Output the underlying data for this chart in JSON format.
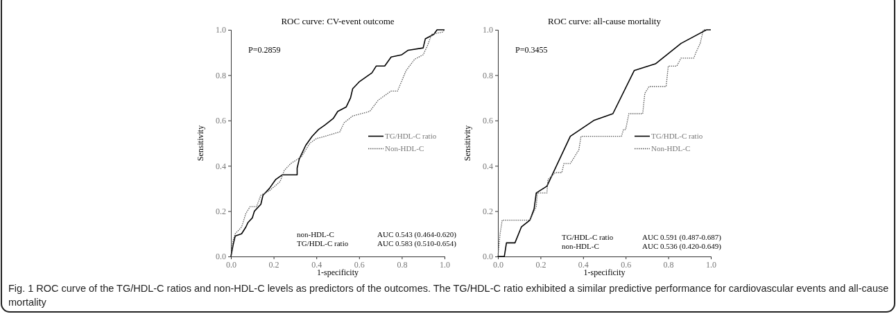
{
  "chart_data": [
    {
      "type": "line",
      "title": "ROC curve: CV-event outcome",
      "xlabel": "1-specificity",
      "ylabel": "Sensitivity",
      "xlim": [
        0,
        1
      ],
      "ylim": [
        0,
        1
      ],
      "xticks": [
        {
          "value": 0,
          "label": "0.0"
        },
        {
          "value": 0.2,
          "label": "0.2"
        },
        {
          "value": 0.4,
          "label": "0.4"
        },
        {
          "value": 0.6,
          "label": "0.6"
        },
        {
          "value": 0.8,
          "label": "0.8"
        },
        {
          "value": 1,
          "label": "1.0"
        }
      ],
      "yticks": [
        {
          "value": 0,
          "label": "0.0"
        },
        {
          "value": 0.2,
          "label": "0.2"
        },
        {
          "value": 0.4,
          "label": "0.4"
        },
        {
          "value": 0.6,
          "label": "0.6"
        },
        {
          "value": 0.8,
          "label": "0.8"
        },
        {
          "value": 1,
          "label": "1.0"
        }
      ],
      "legend": "right",
      "series": [
        {
          "name": "TG/HDL-C ratio",
          "color": "#000000",
          "line_style": "solid",
          "x": [
            0,
            0.01,
            0.02,
            0.05,
            0.07,
            0.08,
            0.1,
            0.11,
            0.14,
            0.15,
            0.18,
            0.21,
            0.24,
            0.31,
            0.31,
            0.32,
            0.35,
            0.38,
            0.41,
            0.44,
            0.48,
            0.5,
            0.54,
            0.56,
            0.57,
            0.6,
            0.63,
            0.66,
            0.68,
            0.72,
            0.75,
            0.8,
            0.83,
            0.9,
            0.91,
            0.95,
            0.965,
            1
          ],
          "values": [
            0,
            0.05,
            0.09,
            0.1,
            0.13,
            0.15,
            0.17,
            0.2,
            0.23,
            0.27,
            0.3,
            0.34,
            0.36,
            0.36,
            0.39,
            0.43,
            0.49,
            0.53,
            0.56,
            0.58,
            0.61,
            0.64,
            0.66,
            0.7,
            0.74,
            0.77,
            0.79,
            0.81,
            0.84,
            0.84,
            0.88,
            0.89,
            0.91,
            0.92,
            0.96,
            0.98,
            1,
            1
          ]
        },
        {
          "name": "Non-HDL-C",
          "color": "#555555",
          "line_style": "dotted",
          "x": [
            0,
            0.01,
            0.02,
            0.05,
            0.07,
            0.09,
            0.12,
            0.14,
            0.18,
            0.23,
            0.25,
            0.28,
            0.33,
            0.37,
            0.4,
            0.44,
            0.51,
            0.53,
            0.57,
            0.65,
            0.69,
            0.75,
            0.78,
            0.82,
            0.86,
            0.9,
            0.92,
            0.94,
            0.99,
            1
          ],
          "values": [
            0,
            0.07,
            0.1,
            0.13,
            0.19,
            0.22,
            0.22,
            0.27,
            0.29,
            0.33,
            0.38,
            0.41,
            0.44,
            0.5,
            0.52,
            0.53,
            0.55,
            0.59,
            0.62,
            0.64,
            0.69,
            0.73,
            0.73,
            0.82,
            0.87,
            0.89,
            0.93,
            0.98,
            0.99,
            1
          ]
        }
      ],
      "annotations": [
        "P=0.2859",
        "non-HDL-C",
        "AUC 0.543 (0.464-0.620)",
        "TG/HDL-C ratio",
        "AUC 0.583 (0.510-0.654)",
        "Fig. 1 ROC curve of the TG/HDL-C ratios and non-HDL-C levels as predictors of the outcomes. The TG/HDL-C ratio exhibited a similar predictive performance for cardiovascular events and all-cause mortality"
      ]
    },
    {
      "type": "line",
      "title": "ROC curve: all-cause mortality",
      "xlabel": "1-specificity",
      "ylabel": "Sensitivity",
      "xlim": [
        0,
        1
      ],
      "ylim": [
        0,
        1
      ],
      "xticks": [
        {
          "value": 0,
          "label": "0.0"
        },
        {
          "value": 0.2,
          "label": "0.2"
        },
        {
          "value": 0.4,
          "label": "0.4"
        },
        {
          "value": 0.6,
          "label": "0.6"
        },
        {
          "value": 0.8,
          "label": "0.8"
        },
        {
          "value": 1,
          "label": "1.0"
        }
      ],
      "yticks": [
        {
          "value": 0,
          "label": "0.0"
        },
        {
          "value": 0.2,
          "label": "0.2"
        },
        {
          "value": 0.4,
          "label": "0.4"
        },
        {
          "value": 0.6,
          "label": "0.6"
        },
        {
          "value": 0.8,
          "label": "0.8"
        },
        {
          "value": 1,
          "label": "1.0"
        }
      ],
      "legend": "right",
      "series": [
        {
          "name": "TG/HDL-C ratio",
          "color": "#000000",
          "line_style": "solid",
          "x": [
            0,
            0.03,
            0.04,
            0.08,
            0.11,
            0.15,
            0.17,
            0.18,
            0.23,
            0.34,
            0.45,
            0.54,
            0.64,
            0.74,
            0.86,
            0.98,
            1
          ],
          "values": [
            0,
            0,
            0.06,
            0.06,
            0.13,
            0.16,
            0.21,
            0.28,
            0.31,
            0.53,
            0.6,
            0.63,
            0.82,
            0.85,
            0.94,
            1,
            1
          ]
        },
        {
          "name": "Non-HDL-C",
          "color": "#555555",
          "line_style": "dotted",
          "x": [
            0,
            0.01,
            0.02,
            0.15,
            0.18,
            0.185,
            0.23,
            0.235,
            0.27,
            0.3,
            0.31,
            0.34,
            0.38,
            0.39,
            0.58,
            0.59,
            0.6,
            0.615,
            0.68,
            0.69,
            0.71,
            0.79,
            0.8,
            0.84,
            0.86,
            0.92,
            0.93,
            0.95,
            0.965,
            1
          ],
          "values": [
            0,
            0.1,
            0.16,
            0.16,
            0.22,
            0.28,
            0.28,
            0.34,
            0.37,
            0.37,
            0.41,
            0.41,
            0.47,
            0.53,
            0.53,
            0.56,
            0.56,
            0.63,
            0.63,
            0.72,
            0.75,
            0.75,
            0.84,
            0.84,
            0.875,
            0.875,
            0.9,
            0.94,
            1,
            1
          ]
        }
      ],
      "annotations": [
        "P=0.3455",
        "TG/HDL-C ratio",
        "AUC 0.591 (0.487-0.687)",
        "non-HDL-C",
        "AUC 0.536 (0.420-0.649)"
      ]
    }
  ]
}
